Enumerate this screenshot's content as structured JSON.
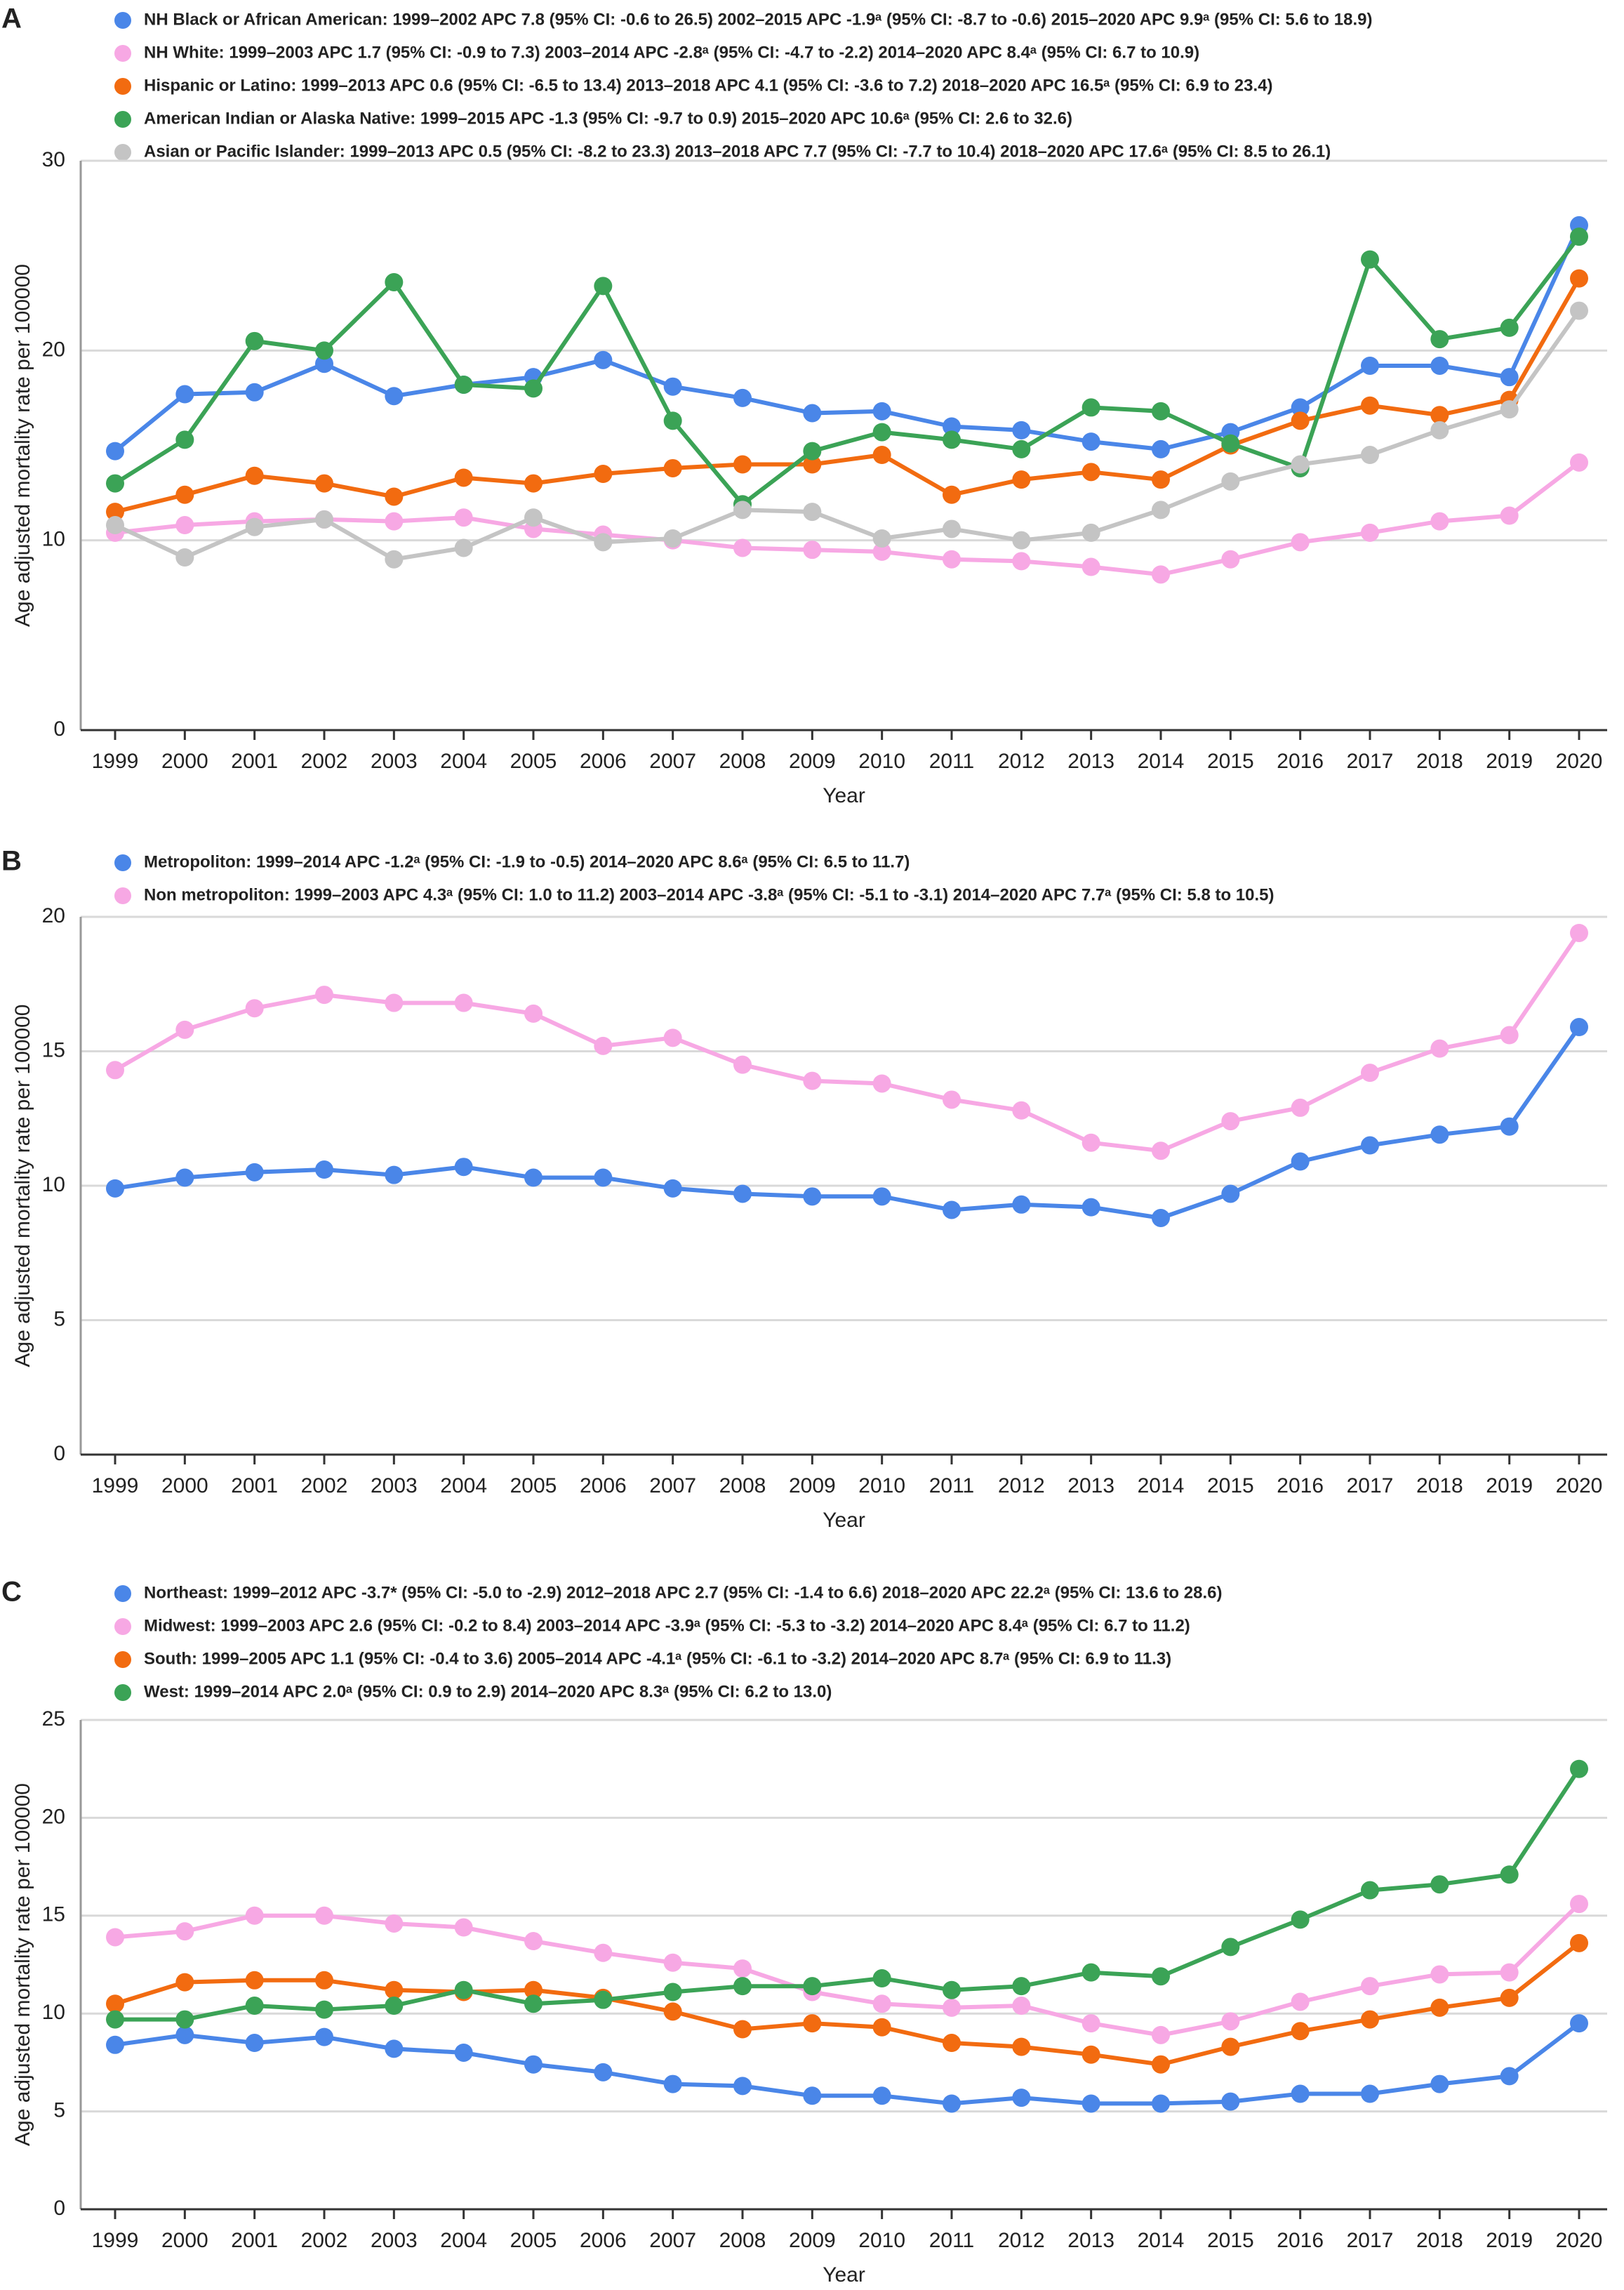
{
  "chart_data": [
    {
      "type": "line",
      "panel_label": "A",
      "categories": [
        "1999",
        "2000",
        "2001",
        "2002",
        "2003",
        "2004",
        "2005",
        "2006",
        "2007",
        "2008",
        "2009",
        "2010",
        "2011",
        "2012",
        "2013",
        "2014",
        "2015",
        "2016",
        "2017",
        "2018",
        "2019",
        "2020"
      ],
      "series": [
        {
          "name": "NH Black or African American: 1999–2002 APC 7.8 (95% CI: -0.6 to 26.5) 2002–2015 APC -1.9ᵃ (95% CI: -8.7 to -0.6) 2015–2020 APC 9.9ᵃ (95% CI: 5.6 to 18.9)",
          "color": "#4a86e8",
          "values": [
            14.7,
            17.7,
            17.8,
            19.3,
            17.6,
            18.2,
            18.6,
            19.5,
            18.1,
            17.5,
            16.7,
            16.8,
            16.0,
            15.8,
            15.2,
            14.8,
            15.7,
            17.0,
            19.2,
            19.2,
            18.6,
            26.6
          ]
        },
        {
          "name": "NH White: 1999–2003 APC 1.7 (95% CI: -0.9 to 7.3) 2003–2014 APC -2.8ᵃ (95% CI: -4.7 to -2.2) 2014–2020 APC 8.4ᵃ (95% CI: 6.7 to 10.9)",
          "color": "#f7a8e4",
          "values": [
            10.4,
            10.8,
            11.0,
            11.1,
            11.0,
            11.2,
            10.6,
            10.3,
            10.0,
            9.6,
            9.5,
            9.4,
            9.0,
            8.9,
            8.6,
            8.2,
            9.0,
            9.9,
            10.4,
            11.0,
            11.3,
            14.1
          ]
        },
        {
          "name": "Hispanic or Latino: 1999–2013 APC 0.6 (95% CI: -6.5 to 13.4) 2013–2018 APC 4.1 (95% CI: -3.6 to 7.2) 2018–2020 APC 16.5ᵃ (95% CI: 6.9 to 23.4)",
          "color": "#f26b10",
          "values": [
            11.5,
            12.4,
            13.4,
            13.0,
            12.3,
            13.3,
            13.0,
            13.5,
            13.8,
            14.0,
            14.0,
            14.5,
            12.4,
            13.2,
            13.6,
            13.2,
            15.0,
            16.3,
            17.1,
            16.6,
            17.4,
            23.8
          ]
        },
        {
          "name": "American Indian or Alaska Native: 1999–2015 APC -1.3 (95% CI: -9.7 to 0.9) 2015–2020 APC 10.6ᵃ (95% CI: 2.6 to 32.6)",
          "color": "#3ba356",
          "values": [
            13.0,
            15.3,
            20.5,
            20.0,
            23.6,
            18.2,
            18.0,
            23.4,
            16.3,
            11.9,
            14.7,
            15.7,
            15.3,
            14.8,
            17.0,
            16.8,
            15.1,
            13.8,
            24.8,
            20.6,
            21.2,
            26.0
          ]
        },
        {
          "name": "Asian or Pacific Islander: 1999–2013 APC 0.5 (95% CI: -8.2 to 23.3) 2013–2018 APC 7.7 (95% CI: -7.7 to 10.4) 2018–2020 APC 17.6ᵃ (95% CI: 8.5 to 26.1)",
          "color": "#c4c4c4",
          "values": [
            10.8,
            9.1,
            10.7,
            11.1,
            9.0,
            9.6,
            11.2,
            9.9,
            10.1,
            11.6,
            11.5,
            10.1,
            10.6,
            10.0,
            10.4,
            11.6,
            13.1,
            14.0,
            14.5,
            15.8,
            16.9,
            22.1
          ]
        }
      ],
      "ylim": [
        0,
        30
      ],
      "yticks": [
        0,
        10,
        20,
        30
      ],
      "grid": true,
      "xlabel": "Year",
      "ylabel": "Age adjusted mortality rate per 100000"
    },
    {
      "type": "line",
      "panel_label": "B",
      "categories": [
        "1999",
        "2000",
        "2001",
        "2002",
        "2003",
        "2004",
        "2005",
        "2006",
        "2007",
        "2008",
        "2009",
        "2010",
        "2011",
        "2012",
        "2013",
        "2014",
        "2015",
        "2016",
        "2017",
        "2018",
        "2019",
        "2020"
      ],
      "series": [
        {
          "name": "Metropoliton: 1999–2014 APC -1.2ᵃ (95% CI: -1.9 to -0.5) 2014–2020 APC 8.6ᵃ (95% CI: 6.5 to 11.7)",
          "color": "#4a86e8",
          "values": [
            9.9,
            10.3,
            10.5,
            10.6,
            10.4,
            10.7,
            10.3,
            10.3,
            9.9,
            9.7,
            9.6,
            9.6,
            9.1,
            9.3,
            9.2,
            8.8,
            9.7,
            10.9,
            11.5,
            11.9,
            12.2,
            15.9
          ]
        },
        {
          "name": "Non metropoliton: 1999–2003 APC 4.3ᵃ (95% CI: 1.0 to 11.2) 2003–2014 APC -3.8ᵃ (95% CI: -5.1 to -3.1) 2014–2020 APC 7.7ᵃ (95% CI: 5.8 to 10.5)",
          "color": "#f7a8e4",
          "values": [
            14.3,
            15.8,
            16.6,
            17.1,
            16.8,
            16.8,
            16.4,
            15.2,
            15.5,
            14.5,
            13.9,
            13.8,
            13.2,
            12.8,
            11.6,
            11.3,
            12.4,
            12.9,
            14.2,
            15.1,
            15.6,
            19.4
          ]
        }
      ],
      "ylim": [
        0,
        20
      ],
      "yticks": [
        0,
        5,
        10,
        15,
        20
      ],
      "grid": true,
      "xlabel": "Year",
      "ylabel": "Age adjusted mortality rate per 100000"
    },
    {
      "type": "line",
      "panel_label": "C",
      "categories": [
        "1999",
        "2000",
        "2001",
        "2002",
        "2003",
        "2004",
        "2005",
        "2006",
        "2007",
        "2008",
        "2009",
        "2010",
        "2011",
        "2012",
        "2013",
        "2014",
        "2015",
        "2016",
        "2017",
        "2018",
        "2019",
        "2020"
      ],
      "series": [
        {
          "name": "Northeast: 1999–2012 APC -3.7* (95% CI: -5.0 to -2.9) 2012–2018 APC 2.7 (95% CI: -1.4 to 6.6) 2018–2020 APC 22.2ᵃ (95% CI: 13.6 to 28.6)",
          "color": "#4a86e8",
          "values": [
            8.4,
            8.9,
            8.5,
            8.8,
            8.2,
            8.0,
            7.4,
            7.0,
            6.4,
            6.3,
            5.8,
            5.8,
            5.4,
            5.7,
            5.4,
            5.4,
            5.5,
            5.9,
            5.9,
            6.4,
            6.8,
            9.5
          ]
        },
        {
          "name": "Midwest: 1999–2003 APC 2.6 (95% CI: -0.2 to 8.4) 2003–2014 APC -3.9ᵃ (95% CI: -5.3 to -3.2) 2014–2020 APC 8.4ᵃ (95% CI: 6.7 to 11.2)",
          "color": "#f7a8e4",
          "values": [
            13.9,
            14.2,
            15.0,
            15.0,
            14.6,
            14.4,
            13.7,
            13.1,
            12.6,
            12.3,
            11.1,
            10.5,
            10.3,
            10.4,
            9.5,
            8.9,
            9.6,
            10.6,
            11.4,
            12.0,
            12.1,
            15.6
          ]
        },
        {
          "name": "South: 1999–2005 APC 1.1 (95% CI: -0.4 to 3.6) 2005–2014 APC -4.1ᵃ (95% CI: -6.1 to -3.2) 2014–2020 APC 8.7ᵃ (95% CI: 6.9 to 11.3)",
          "color": "#f26b10",
          "values": [
            10.5,
            11.6,
            11.7,
            11.7,
            11.2,
            11.1,
            11.2,
            10.8,
            10.1,
            9.2,
            9.5,
            9.3,
            8.5,
            8.3,
            7.9,
            7.4,
            8.3,
            9.1,
            9.7,
            10.3,
            10.8,
            13.6
          ]
        },
        {
          "name": "West: 1999–2014 APC 2.0ᵃ (95% CI: 0.9 to 2.9) 2014–2020 APC 8.3ᵃ (95% CI: 6.2 to 13.0)",
          "color": "#3ba356",
          "values": [
            9.7,
            9.7,
            10.4,
            10.2,
            10.4,
            11.2,
            10.5,
            10.7,
            11.1,
            11.4,
            11.4,
            11.8,
            11.2,
            11.4,
            12.1,
            11.9,
            13.4,
            14.8,
            16.3,
            16.6,
            17.1,
            22.5
          ]
        }
      ],
      "ylim": [
        0,
        25
      ],
      "yticks": [
        0,
        5,
        10,
        15,
        20,
        25
      ],
      "grid": true,
      "xlabel": "Year",
      "ylabel": "Age adjusted mortality rate per 100000"
    }
  ]
}
